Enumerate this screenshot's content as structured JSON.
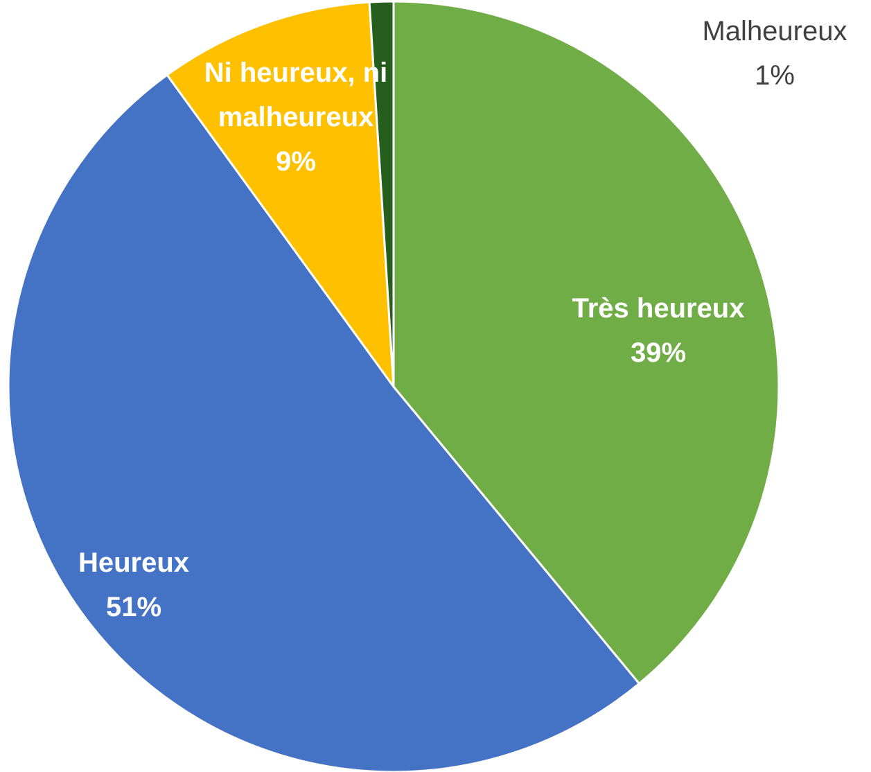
{
  "chart_data": {
    "type": "pie",
    "categories": [
      "Très heureux",
      "Heureux",
      "Ni heureux, ni malheureux",
      "Malheureux"
    ],
    "values": [
      39,
      51,
      9,
      1
    ],
    "value_labels": [
      "39%",
      "51%",
      "9%",
      "1%"
    ],
    "colors": [
      "#70ad47",
      "#4472c4",
      "#ffc000",
      "#265e1e"
    ]
  }
}
